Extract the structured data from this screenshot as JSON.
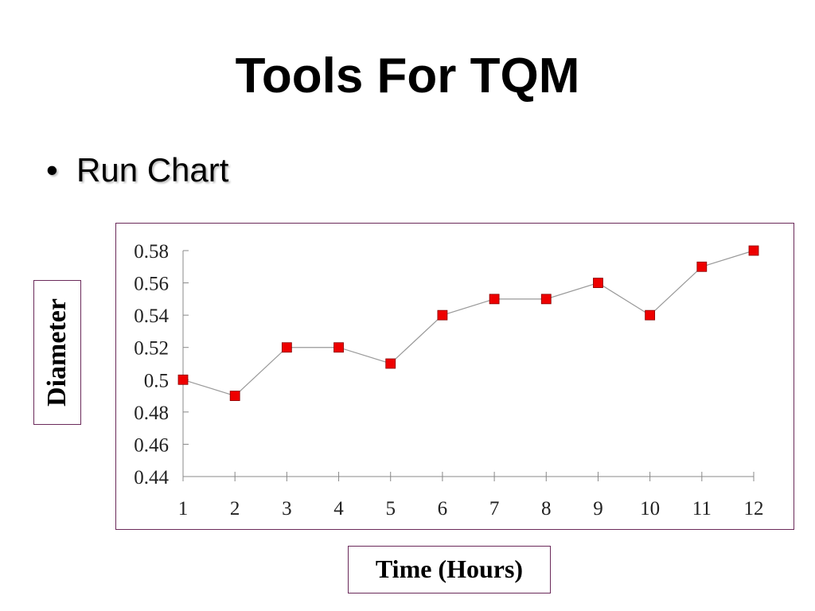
{
  "slide": {
    "title": "Tools For TQM",
    "bullet": "•",
    "bullet_text": "Run Chart"
  },
  "chart_data": {
    "type": "line",
    "title": "",
    "xlabel": "Time (Hours)",
    "ylabel": "Diameter",
    "x": [
      1,
      2,
      3,
      4,
      5,
      6,
      7,
      8,
      9,
      10,
      11,
      12
    ],
    "values": [
      0.5,
      0.49,
      0.52,
      0.52,
      0.51,
      0.54,
      0.55,
      0.55,
      0.56,
      0.54,
      0.57,
      0.58
    ],
    "yticks": [
      "0.58",
      "0.56",
      "0.54",
      "0.52",
      "0.5",
      "0.48",
      "0.46",
      "0.44"
    ],
    "ylim": [
      0.44,
      0.58
    ],
    "xlim": [
      1,
      12
    ],
    "grid": false,
    "marker": "square",
    "marker_color": "#ee0000",
    "line_color": "#999999",
    "frame_color": "#6b2a5a"
  }
}
